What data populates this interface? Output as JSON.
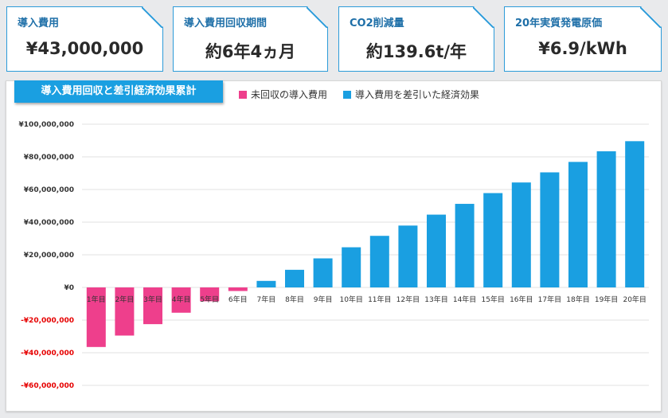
{
  "kpis": [
    {
      "label": "導入費用",
      "value": "¥43,000,000"
    },
    {
      "label": "導入費用回収期間",
      "value": "約6年4ヵ月"
    },
    {
      "label": "CO2削減量",
      "value": "約139.6t/年"
    },
    {
      "label": "20年実質発電原価",
      "value": "¥6.9/kWh"
    }
  ],
  "colors": {
    "accent": "#1a9fe1",
    "negative": "#ee3f8c",
    "positive": "#1a9fe1",
    "negative_tick": "#e60000"
  },
  "chart_data": {
    "type": "bar",
    "title": "導入費用回収と差引経済効果累計",
    "legend_placement": "top",
    "grid": true,
    "categories": [
      "1年目",
      "2年目",
      "3年目",
      "4年目",
      "5年目",
      "6年目",
      "7年目",
      "8年目",
      "9年目",
      "10年目",
      "11年目",
      "12年目",
      "13年目",
      "14年目",
      "15年目",
      "16年目",
      "17年目",
      "18年目",
      "19年目",
      "20年目"
    ],
    "series": [
      {
        "name": "未回収の導入費用",
        "values": [
          -36500000,
          -29500000,
          -22500000,
          -15500000,
          -8500000,
          -2200000,
          null,
          null,
          null,
          null,
          null,
          null,
          null,
          null,
          null,
          null,
          null,
          null,
          null,
          null
        ]
      },
      {
        "name": "導入費用を差引いた経済効果",
        "values": [
          null,
          null,
          null,
          null,
          null,
          null,
          4000000,
          10800000,
          17800000,
          24600000,
          31600000,
          37900000,
          44600000,
          51200000,
          57800000,
          64300000,
          70500000,
          76900000,
          83400000,
          89600000
        ]
      }
    ],
    "ylim": [
      -60000000,
      100000000
    ],
    "yticks": [
      {
        "value": 100000000,
        "label": "¥100,000,000"
      },
      {
        "value": 80000000,
        "label": "¥80,000,000"
      },
      {
        "value": 60000000,
        "label": "¥60,000,000"
      },
      {
        "value": 40000000,
        "label": "¥40,000,000"
      },
      {
        "value": 20000000,
        "label": "¥20,000,000"
      },
      {
        "value": 0,
        "label": "¥0"
      },
      {
        "value": -20000000,
        "label": "-¥20,000,000"
      },
      {
        "value": -40000000,
        "label": "-¥40,000,000"
      },
      {
        "value": -60000000,
        "label": "-¥60,000,000"
      }
    ]
  }
}
